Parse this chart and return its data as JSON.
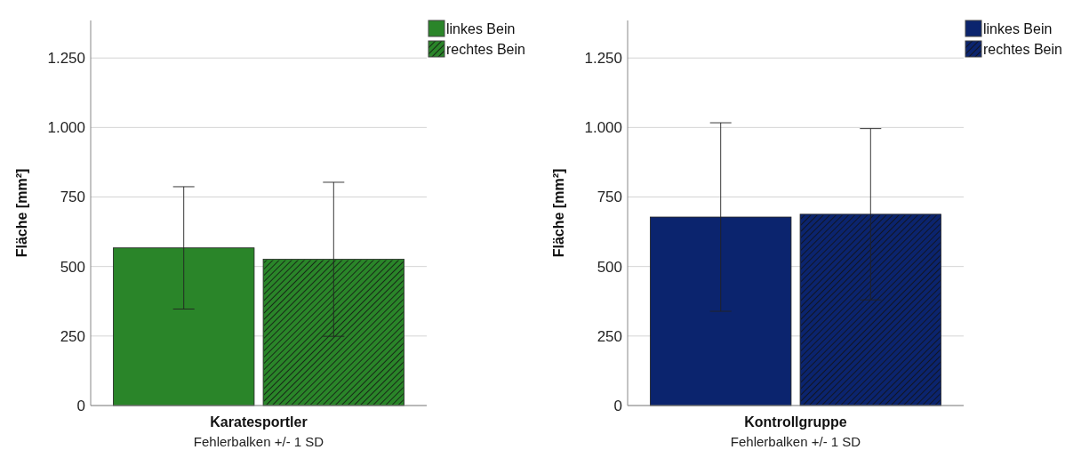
{
  "chart_data": [
    {
      "type": "bar",
      "categories": [
        "Karatesportler"
      ],
      "ylabel": "Fläche [mm²]",
      "ylim": [
        0,
        1385
      ],
      "yticks": [
        0,
        {
          "value": 250,
          "label": "250"
        },
        {
          "value": 500,
          "label": "500"
        },
        {
          "value": 750,
          "label": "750"
        },
        {
          "value": 1000,
          "label": "1.000"
        },
        {
          "value": 1250,
          "label": "1.250"
        }
      ],
      "grid": "y",
      "legend": "top right",
      "annotations": [
        "Fehlerbalken +/- 1 SD"
      ],
      "series": [
        {
          "name": "linkes Bein",
          "color": "#2a8529",
          "values": [
            567
          ],
          "errors": [
            220
          ]
        },
        {
          "name": "rechtes Bein",
          "color": "#2a8529",
          "values": [
            526
          ],
          "errors": [
            277
          ]
        }
      ]
    },
    {
      "type": "bar",
      "categories": [
        "Kontrollgruppe"
      ],
      "ylabel": "Fläche [mm²]",
      "ylim": [
        0,
        1385
      ],
      "yticks": [
        0,
        {
          "value": 250,
          "label": "250"
        },
        {
          "value": 500,
          "label": "500"
        },
        {
          "value": 750,
          "label": "750"
        },
        {
          "value": 1000,
          "label": "1.000"
        },
        {
          "value": 1250,
          "label": "1.250"
        }
      ],
      "grid": "y",
      "legend": "top right",
      "annotations": [
        "Fehlerbalken +/- 1 SD"
      ],
      "series": [
        {
          "name": "linkes Bein",
          "color": "#0b246e",
          "values": [
            678
          ],
          "errors": [
            339
          ]
        },
        {
          "name": "rechtes Bein",
          "color": "#0b246e",
          "values": [
            688
          ],
          "errors": [
            308
          ]
        }
      ]
    }
  ]
}
